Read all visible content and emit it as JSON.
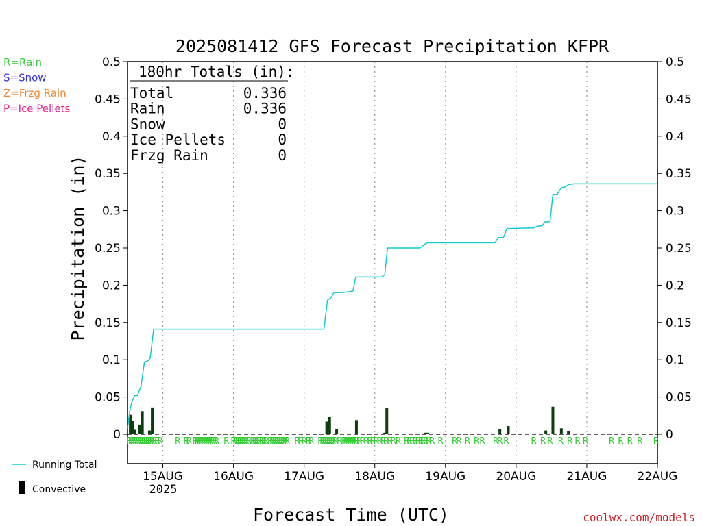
{
  "chart_data": {
    "type": "bar",
    "title": "2025081412 GFS Forecast Precipitation KFPR",
    "xlabel": "Forecast Time (UTC)",
    "ylabel": "Precipitation (in)",
    "ylim": [
      0,
      0.5
    ],
    "xlim": [
      0.5,
      8.0
    ],
    "yticks": [
      0,
      0.05,
      0.1,
      0.15,
      0.2,
      0.25,
      0.3,
      0.35,
      0.4,
      0.45,
      0.5
    ],
    "ytick_labels": [
      "0",
      "0.05",
      "0.1",
      "0.15",
      "0.2",
      "0.25",
      "0.3",
      "0.35",
      "0.4",
      "0.45",
      "0.5"
    ],
    "xticks": [
      {
        "day": 1,
        "label": "15AUG"
      },
      {
        "day": 2,
        "label": "16AUG"
      },
      {
        "day": 3,
        "label": "17AUG"
      },
      {
        "day": 4,
        "label": "18AUG"
      },
      {
        "day": 5,
        "label": "19AUG"
      },
      {
        "day": 6,
        "label": "20AUG"
      },
      {
        "day": 7,
        "label": "21AUG"
      },
      {
        "day": 8,
        "label": "22AUG"
      }
    ],
    "year_label": "2025",
    "grid": "vertical-dotted",
    "legend_types": [
      {
        "text": "R=Rain",
        "color": "#33cc33"
      },
      {
        "text": "S=Snow",
        "color": "#3333dd"
      },
      {
        "text": "Z=Frzg Rain",
        "color": "#ee8833"
      },
      {
        "text": "P=Ice Pellets",
        "color": "#ee2288"
      }
    ],
    "legend_series": [
      {
        "name": "Running Total",
        "color": "#11cccc"
      },
      {
        "name": "Convective",
        "color": "#000000"
      }
    ],
    "totals": {
      "header": "180hr Totals (in):",
      "rows": [
        {
          "label": "Total",
          "value": "0.336"
        },
        {
          "label": "Rain",
          "value": "0.336"
        },
        {
          "label": "Snow",
          "value": "0"
        },
        {
          "label": "Ice Pellets",
          "value": "0"
        },
        {
          "label": "Frzg Rain",
          "value": "0"
        }
      ]
    },
    "series": [
      {
        "name": "Running Total",
        "color": "#11cccc",
        "points": [
          [
            0.5,
            0.008
          ],
          [
            0.53,
            0.03
          ],
          [
            0.56,
            0.043
          ],
          [
            0.6,
            0.052
          ],
          [
            0.64,
            0.052
          ],
          [
            0.69,
            0.064
          ],
          [
            0.74,
            0.097
          ],
          [
            0.78,
            0.098
          ],
          [
            0.82,
            0.102
          ],
          [
            0.87,
            0.141
          ],
          [
            3.28,
            0.141
          ],
          [
            3.33,
            0.18
          ],
          [
            3.38,
            0.183
          ],
          [
            3.42,
            0.19
          ],
          [
            3.48,
            0.19
          ],
          [
            3.53,
            0.19
          ],
          [
            3.69,
            0.192
          ],
          [
            3.73,
            0.211
          ],
          [
            4.1,
            0.211
          ],
          [
            4.14,
            0.214
          ],
          [
            4.18,
            0.25
          ],
          [
            4.64,
            0.25
          ],
          [
            4.72,
            0.256
          ],
          [
            4.75,
            0.257
          ],
          [
            5.7,
            0.257
          ],
          [
            5.75,
            0.264
          ],
          [
            5.82,
            0.264
          ],
          [
            5.87,
            0.276
          ],
          [
            6.25,
            0.277
          ],
          [
            6.3,
            0.279
          ],
          [
            6.37,
            0.28
          ],
          [
            6.41,
            0.285
          ],
          [
            6.48,
            0.285
          ],
          [
            6.52,
            0.322
          ],
          [
            6.58,
            0.322
          ],
          [
            6.64,
            0.331
          ],
          [
            6.7,
            0.332
          ],
          [
            6.74,
            0.335
          ],
          [
            6.82,
            0.336
          ],
          [
            8.0,
            0.336
          ]
        ]
      },
      {
        "name": "Precipitation",
        "type": "bar",
        "bars": [
          {
            "x": 0.54,
            "value": 0.026
          },
          {
            "x": 0.57,
            "value": 0.018
          },
          {
            "x": 0.6,
            "value": 0.006
          },
          {
            "x": 0.67,
            "value": 0.013
          },
          {
            "x": 0.71,
            "value": 0.031
          },
          {
            "x": 0.81,
            "value": 0.005
          },
          {
            "x": 0.85,
            "value": 0.036
          },
          {
            "x": 3.32,
            "value": 0.017
          },
          {
            "x": 3.36,
            "value": 0.023
          },
          {
            "x": 3.46,
            "value": 0.007
          },
          {
            "x": 3.74,
            "value": 0.019
          },
          {
            "x": 4.14,
            "value": 0.002
          },
          {
            "x": 4.17,
            "value": 0.035
          },
          {
            "x": 4.68,
            "value": 0.001
          },
          {
            "x": 4.72,
            "value": 0.002
          },
          {
            "x": 4.75,
            "value": 0.002
          },
          {
            "x": 5.77,
            "value": 0.007
          },
          {
            "x": 5.89,
            "value": 0.011
          },
          {
            "x": 6.28,
            "value": 0.001
          },
          {
            "x": 6.42,
            "value": 0.005
          },
          {
            "x": 6.52,
            "value": 0.037
          },
          {
            "x": 6.64,
            "value": 0.008
          },
          {
            "x": 6.74,
            "value": 0.004
          }
        ]
      }
    ],
    "type_markers": {
      "symbol": "R",
      "color": "#33cc33",
      "x": [
        0.52,
        0.55,
        0.58,
        0.61,
        0.64,
        0.67,
        0.7,
        0.73,
        0.76,
        0.79,
        0.82,
        0.85,
        0.88,
        0.92,
        0.96,
        1.21,
        1.33,
        1.37,
        1.46,
        1.49,
        1.52,
        1.55,
        1.58,
        1.61,
        1.64,
        1.67,
        1.7,
        1.73,
        1.76,
        1.9,
        2.0,
        2.03,
        2.06,
        2.09,
        2.12,
        2.15,
        2.18,
        2.21,
        2.27,
        2.3,
        2.33,
        2.36,
        2.4,
        2.43,
        2.46,
        2.52,
        2.55,
        2.58,
        2.61,
        2.64,
        2.67,
        2.7,
        2.73,
        2.76,
        2.9,
        2.95,
        3.0,
        3.06,
        3.1,
        3.23,
        3.26,
        3.29,
        3.32,
        3.35,
        3.38,
        3.41,
        3.44,
        3.5,
        3.56,
        3.59,
        3.62,
        3.65,
        3.68,
        3.71,
        3.74,
        3.78,
        3.83,
        3.88,
        3.93,
        3.97,
        4.02,
        4.07,
        4.12,
        4.16,
        4.21,
        4.26,
        4.33,
        4.45,
        4.49,
        4.53,
        4.57,
        4.61,
        4.65,
        4.68,
        4.72,
        4.76,
        4.81,
        4.93,
        5.13,
        5.19,
        5.31,
        5.44,
        5.52,
        5.71,
        5.77,
        5.86,
        6.25,
        6.38,
        6.48,
        6.63,
        6.76,
        6.87,
        6.98,
        7.35,
        7.48,
        7.61,
        7.75,
        7.98
      ]
    }
  },
  "footer": {
    "year": "2025",
    "credit": "coolwx.com/models"
  }
}
